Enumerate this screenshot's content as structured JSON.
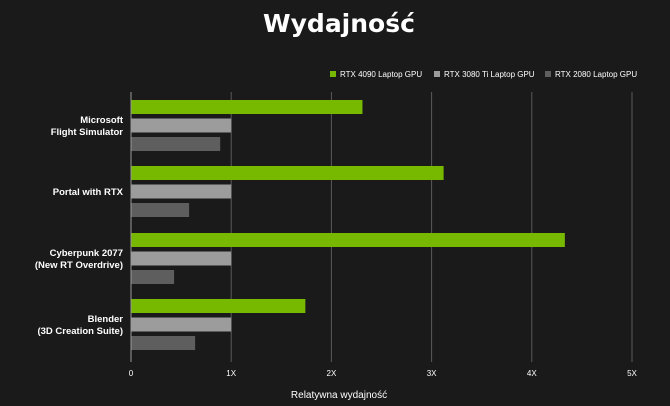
{
  "chart_data": {
    "type": "bar",
    "orientation": "horizontal",
    "title": "Wydajność",
    "xlabel": "Relatywna wydajność",
    "ylabel": "",
    "xlim": [
      0,
      5
    ],
    "x_ticks": [
      0,
      1,
      2,
      3,
      4,
      5
    ],
    "x_tick_labels": [
      "0",
      "1X",
      "2X",
      "3X",
      "4X",
      "5X"
    ],
    "grid": true,
    "legend_position": "top-right",
    "categories": [
      [
        "Microsoft",
        "Flight Simulator"
      ],
      [
        "Portal with RTX"
      ],
      [
        "Cyberpunk 2077",
        "(New RT Overdrive)"
      ],
      [
        "Blender",
        "(3D Creation Suite)"
      ]
    ],
    "series": [
      {
        "name": "RTX 4090 Laptop GPU",
        "color": "#76b900",
        "values": [
          2.31,
          3.12,
          4.33,
          1.74
        ]
      },
      {
        "name": "RTX 3080 Ti Laptop GPU",
        "color": "#9c9c9c",
        "values": [
          1.0,
          1.0,
          1.0,
          1.0
        ]
      },
      {
        "name": "RTX 2080 Laptop GPU",
        "color": "#5e5e5e",
        "values": [
          0.89,
          0.58,
          0.43,
          0.64
        ]
      }
    ]
  }
}
